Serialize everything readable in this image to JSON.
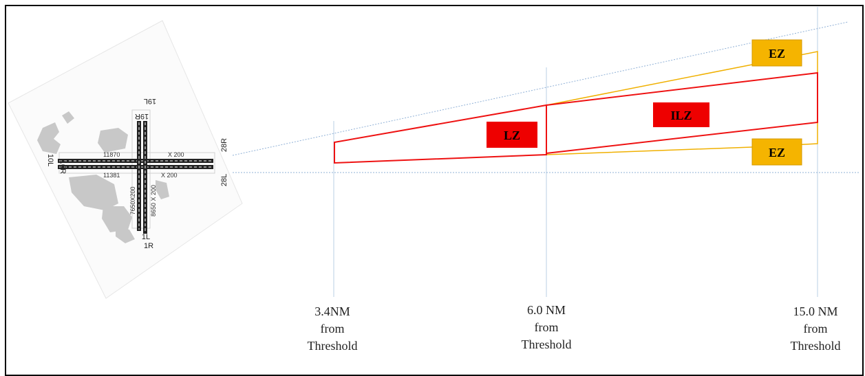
{
  "airport": {
    "runway_labels": {
      "r19l": "19L",
      "r19r": "19R",
      "r10l": "10L",
      "r10r": "10R",
      "r28r": "28R",
      "r28l": "28L",
      "r1l": "1L",
      "r1r": "1R"
    },
    "dimensions": {
      "rwy_10l_28r_length": "11870",
      "rwy_10l_28r_width": "X 200",
      "rwy_10r_28l_length": "11381",
      "rwy_10r_28l_width": "X 200",
      "rwy_1l_19r": "7650X200",
      "rwy_1r_19l": "8650 X 200"
    }
  },
  "zones": {
    "lz": "LZ",
    "ilz": "ILZ",
    "ez_upper": "EZ",
    "ez_lower": "EZ"
  },
  "distances": [
    {
      "value": "3.4NM",
      "line2": "from",
      "line3": "Threshold"
    },
    {
      "value": "6.0 NM",
      "line2": "from",
      "line3": "Threshold"
    },
    {
      "value": "15.0 NM",
      "line2": "from",
      "line3": "Threshold"
    }
  ],
  "colors": {
    "lz_fill": "#ee0000",
    "zone_outline": "#ee1111",
    "ez_fill": "#f5b400",
    "ez_outline": "#f0b000",
    "guide_line": "#9fbfdf"
  }
}
